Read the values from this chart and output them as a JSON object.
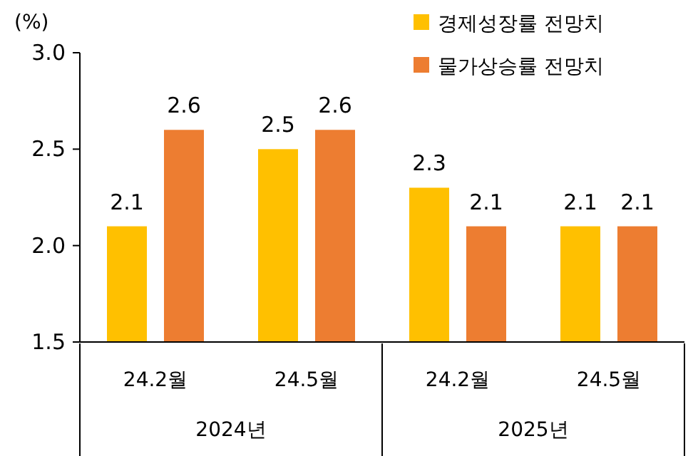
{
  "chart_data": {
    "type": "bar",
    "ylabel": "(%)",
    "categories": [
      "24.2월",
      "24.5월",
      "24.2월",
      "24.5월"
    ],
    "series": [
      {
        "name": "경제성장률 전망치",
        "color": "#ffc000",
        "values": [
          2.1,
          2.5,
          2.3,
          2.1
        ]
      },
      {
        "name": "물가상승률 전망치",
        "color": "#ed7d31",
        "values": [
          2.6,
          2.6,
          2.1,
          2.1
        ]
      }
    ],
    "ylim": [
      1.5,
      3.0
    ],
    "yticks": [
      1.5,
      {
        "value": 2.0,
        "label": "2.0"
      },
      2.5,
      {
        "value": 3.0,
        "label": "3.0"
      }
    ],
    "data_labels": true,
    "legend": "top right",
    "annotations": [
      "2024년",
      "2025년"
    ]
  }
}
